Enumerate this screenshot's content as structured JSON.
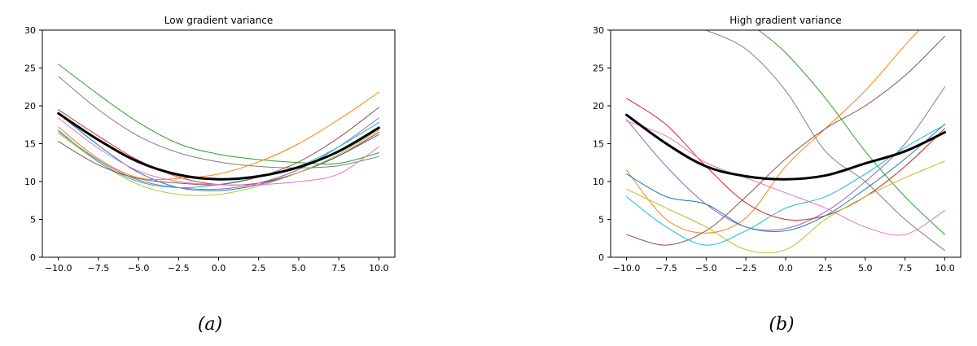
{
  "chart_data": [
    {
      "type": "line",
      "title": "Low gradient variance",
      "caption": "(a)",
      "xlim": [
        -11,
        11
      ],
      "ylim": [
        0,
        30
      ],
      "xticks": [
        -10.0,
        -7.5,
        -5.0,
        -2.5,
        0.0,
        2.5,
        5.0,
        7.5,
        10.0
      ],
      "xtick_labels": [
        "−10.0",
        "−7.5",
        "−5.0",
        "−2.5",
        "0.0",
        "2.5",
        "5.0",
        "7.5",
        "10.0"
      ],
      "yticks": [
        0,
        5,
        10,
        15,
        20,
        25,
        30
      ],
      "ytick_labels": [
        "0",
        "5",
        "10",
        "15",
        "20",
        "25",
        "30"
      ],
      "grid": false,
      "series": [
        {
          "color": "#2ca02c",
          "width": 1,
          "x": [
            -10,
            -7.5,
            -5,
            -2.5,
            0,
            2.5,
            5,
            7.5,
            10
          ],
          "y": [
            25.5,
            21.5,
            17.8,
            15.0,
            13.6,
            12.9,
            12.5,
            12.4,
            13.8
          ]
        },
        {
          "color": "#7f7f7f",
          "width": 1,
          "x": [
            -10,
            -7.5,
            -5,
            -2.5,
            0,
            2.5,
            5,
            7.5,
            10
          ],
          "y": [
            23.9,
            19.5,
            16.0,
            13.8,
            12.6,
            12.0,
            11.8,
            12.1,
            13.3
          ]
        },
        {
          "color": "#d62728",
          "width": 1,
          "x": [
            -10,
            -7.5,
            -5,
            -2.5,
            0,
            2.5,
            5,
            7.5,
            10
          ],
          "y": [
            19.5,
            16.0,
            12.8,
            10.6,
            9.6,
            9.8,
            11.2,
            13.4,
            16.5
          ]
        },
        {
          "color": "#1f77b4",
          "width": 1,
          "x": [
            -10,
            -7.5,
            -5,
            -2.5,
            0,
            2.5,
            5,
            7.5,
            10
          ],
          "y": [
            19.0,
            14.8,
            11.2,
            9.2,
            8.8,
            9.6,
            11.2,
            13.4,
            16.2
          ]
        },
        {
          "color": "#ff7f0e",
          "width": 1,
          "x": [
            -10,
            -7.5,
            -5,
            -2.5,
            0,
            2.5,
            5,
            7.5,
            10
          ],
          "y": [
            17.2,
            13.0,
            10.5,
            10.4,
            11.0,
            12.6,
            15.0,
            18.2,
            21.8
          ]
        },
        {
          "color": "#9467bd",
          "width": 1,
          "x": [
            -10,
            -7.5,
            -5,
            -2.5,
            0,
            2.5,
            5,
            7.5,
            10
          ],
          "y": [
            16.6,
            12.8,
            10.2,
            9.2,
            9.0,
            9.8,
            11.6,
            14.6,
            18.4
          ]
        },
        {
          "color": "#bcbd22",
          "width": 1,
          "x": [
            -10,
            -7.5,
            -5,
            -2.5,
            0,
            2.5,
            5,
            7.5,
            10
          ],
          "y": [
            16.4,
            12.6,
            9.6,
            8.3,
            8.3,
            9.4,
            11.2,
            13.6,
            16.8
          ]
        },
        {
          "color": "#17becf",
          "width": 1,
          "x": [
            -10,
            -7.5,
            -5,
            -2.5,
            0,
            2.5,
            5,
            7.5,
            10
          ],
          "y": [
            16.8,
            12.6,
            10.0,
            9.2,
            9.6,
            10.6,
            12.0,
            14.6,
            17.8
          ]
        },
        {
          "color": "#8c564b",
          "width": 1,
          "x": [
            -10,
            -7.5,
            -5,
            -2.5,
            0,
            2.5,
            5,
            7.5,
            10
          ],
          "y": [
            15.3,
            12.2,
            10.4,
            9.8,
            9.6,
            10.6,
            12.6,
            15.8,
            19.8
          ]
        },
        {
          "color": "#e377c2",
          "width": 1,
          "x": [
            -10,
            -7.5,
            -5,
            -2.5,
            0,
            2.5,
            5,
            7.5,
            10
          ],
          "y": [
            18.4,
            14.4,
            11.4,
            10.0,
            9.6,
            9.6,
            10.0,
            11.0,
            14.6
          ]
        },
        {
          "color": "#000000",
          "width": 3,
          "x": [
            -10,
            -7.5,
            -5,
            -2.5,
            0,
            2.5,
            5,
            7.5,
            10
          ],
          "y": [
            19.0,
            15.5,
            12.6,
            10.9,
            10.3,
            10.7,
            11.9,
            14.0,
            17.1
          ]
        }
      ]
    },
    {
      "type": "line",
      "title": "High gradient variance",
      "caption": "(b)",
      "xlim": [
        -11,
        11
      ],
      "ylim": [
        0,
        30
      ],
      "xticks": [
        -10.0,
        -7.5,
        -5.0,
        -2.5,
        0.0,
        2.5,
        5.0,
        7.5,
        10.0
      ],
      "xtick_labels": [
        "−10.0",
        "−7.5",
        "−5.0",
        "−2.5",
        "0.0",
        "2.5",
        "5.0",
        "7.5",
        "10.0"
      ],
      "yticks": [
        0,
        5,
        10,
        15,
        20,
        25,
        30
      ],
      "ytick_labels": [
        "0",
        "5",
        "10",
        "15",
        "20",
        "25",
        "30"
      ],
      "grid": false,
      "series": [
        {
          "color": "#7f7f7f",
          "width": 1,
          "x": [
            -5,
            -2.5,
            0,
            2.5,
            5,
            7.5,
            10
          ],
          "y": [
            30.0,
            27.5,
            22.0,
            14.0,
            10.0,
            5.0,
            0.9
          ]
        },
        {
          "color": "#2ca02c",
          "width": 1,
          "x": [
            -1.7,
            0,
            2.5,
            5,
            7.5,
            10
          ],
          "y": [
            30.0,
            27.0,
            21.0,
            14.0,
            8.0,
            3.0
          ]
        },
        {
          "color": "#ff7f0e",
          "width": 1,
          "x": [
            -10,
            -7.5,
            -5,
            -2.5,
            0,
            2.5,
            5,
            7.5,
            8.4
          ],
          "y": [
            11.5,
            5.0,
            3.2,
            5.2,
            12.0,
            17.0,
            22.0,
            28.0,
            30.0
          ]
        },
        {
          "color": "#8c564b",
          "width": 1,
          "x": [
            -10,
            -7.5,
            -5,
            -2.5,
            0,
            2.5,
            5,
            7.5,
            10
          ],
          "y": [
            3.0,
            1.6,
            3.5,
            8.0,
            13.0,
            17.0,
            20.0,
            24.0,
            29.2
          ]
        },
        {
          "color": "#9467bd",
          "width": 1,
          "x": [
            -10,
            -7.5,
            -5,
            -2.5,
            0,
            2.5,
            5,
            7.5,
            10
          ],
          "y": [
            18.2,
            12.0,
            7.0,
            4.0,
            3.8,
            6.0,
            10.0,
            15.0,
            22.5
          ]
        },
        {
          "color": "#d62728",
          "width": 1,
          "x": [
            -10,
            -7.5,
            -5,
            -2.5,
            0,
            2.5,
            5,
            7.5,
            10
          ],
          "y": [
            21.0,
            17.5,
            12.0,
            7.2,
            5.0,
            5.5,
            8.0,
            12.0,
            17.0
          ]
        },
        {
          "color": "#1f77b4",
          "width": 1,
          "x": [
            -10,
            -7.5,
            -5,
            -2.5,
            0,
            2.5,
            5,
            7.5,
            10
          ],
          "y": [
            11.0,
            8.0,
            7.0,
            4.0,
            3.5,
            5.5,
            9.0,
            13.0,
            17.6
          ]
        },
        {
          "color": "#17becf",
          "width": 1,
          "x": [
            -10,
            -7.5,
            -5,
            -2.5,
            0,
            2.5,
            5,
            7.5,
            10
          ],
          "y": [
            8.0,
            4.0,
            1.6,
            3.5,
            6.5,
            8.0,
            11.0,
            14.5,
            17.5
          ]
        },
        {
          "color": "#bcbd22",
          "width": 1,
          "x": [
            -10,
            -7.5,
            -5,
            -2.5,
            0,
            2.5,
            5,
            7.5,
            10
          ],
          "y": [
            9.0,
            6.5,
            4.0,
            1.0,
            1.0,
            5.0,
            8.0,
            10.5,
            12.7
          ]
        },
        {
          "color": "#e377c2",
          "width": 1,
          "x": [
            -10,
            -7.5,
            -5,
            -2.5,
            0,
            2.5,
            5,
            7.5,
            10
          ],
          "y": [
            18.0,
            16.0,
            12.5,
            10.5,
            8.5,
            6.5,
            4.0,
            3.0,
            6.2
          ]
        },
        {
          "color": "#000000",
          "width": 3,
          "x": [
            -10,
            -7.5,
            -5,
            -2.5,
            0,
            2.5,
            5,
            7.5,
            10
          ],
          "y": [
            18.8,
            15.0,
            12.0,
            10.7,
            10.3,
            10.8,
            12.4,
            14.0,
            16.5
          ]
        }
      ]
    }
  ]
}
